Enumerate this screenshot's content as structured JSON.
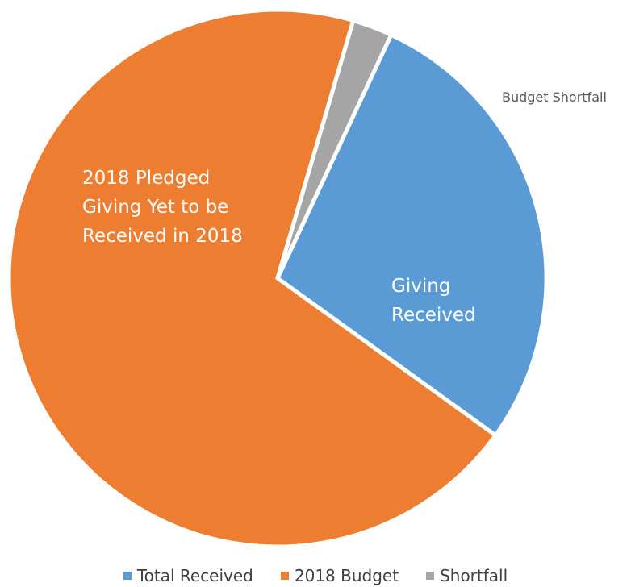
{
  "chart_data": {
    "type": "pie",
    "title": "",
    "slices": [
      {
        "name": "Total Received",
        "label": [
          "Giving",
          "Received"
        ],
        "value": 28.0,
        "color": "#5B9BD5"
      },
      {
        "name": "2018 Budget",
        "label": [
          "2018 Pledged",
          "Giving Yet to be",
          "Received in 2018"
        ],
        "value": 69.6,
        "color": "#ED7D31"
      },
      {
        "name": "Shortfall",
        "label": [
          "Budget Shortfall"
        ],
        "value": 2.4,
        "color": "#A5A5A5"
      }
    ],
    "start_angle_deg": 25,
    "direction": "clockwise",
    "legend": {
      "placement": "bottom",
      "entries": [
        "Total Received",
        "2018 Budget",
        "Shortfall"
      ]
    }
  }
}
